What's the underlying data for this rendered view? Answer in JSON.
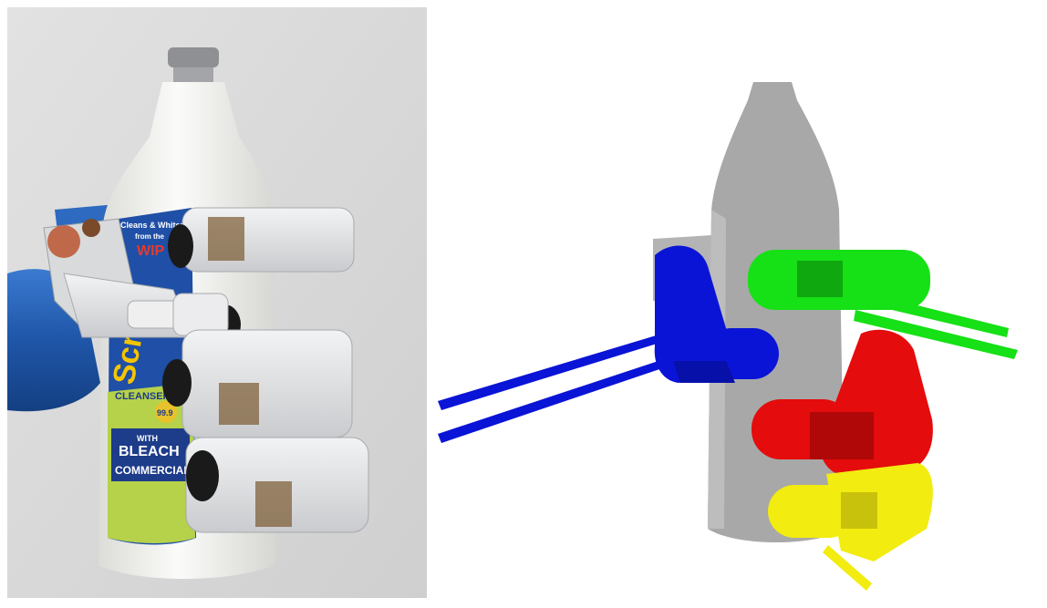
{
  "photo": {
    "bottle_label": {
      "brand": "Scrub",
      "tag_line1": "Cleans & Whitens",
      "tag_line2": "from the",
      "tag_line3": "WIP",
      "type": "CLEANSER",
      "badge": "99.9",
      "with_text": "WITH",
      "bleach_text": "BLEACH",
      "commercial_text": "COMMERCIAL"
    },
    "colors": {
      "background": "#d8d8d8",
      "bottle": "#f4f4f2",
      "cap": "#8e9094",
      "label_blue": "#1f4fa6",
      "label_green": "#b6d14a",
      "robot_arm": "#2a63b8",
      "finger_shell": "#e7e8ea",
      "fingertip": "#1a1a1a"
    }
  },
  "render": {
    "colors": {
      "bottle": "#a6a6a6",
      "thumb": "#0a14d6",
      "index": "#16e016",
      "middle": "#e40c0c",
      "ring": "#f2ec10"
    }
  }
}
